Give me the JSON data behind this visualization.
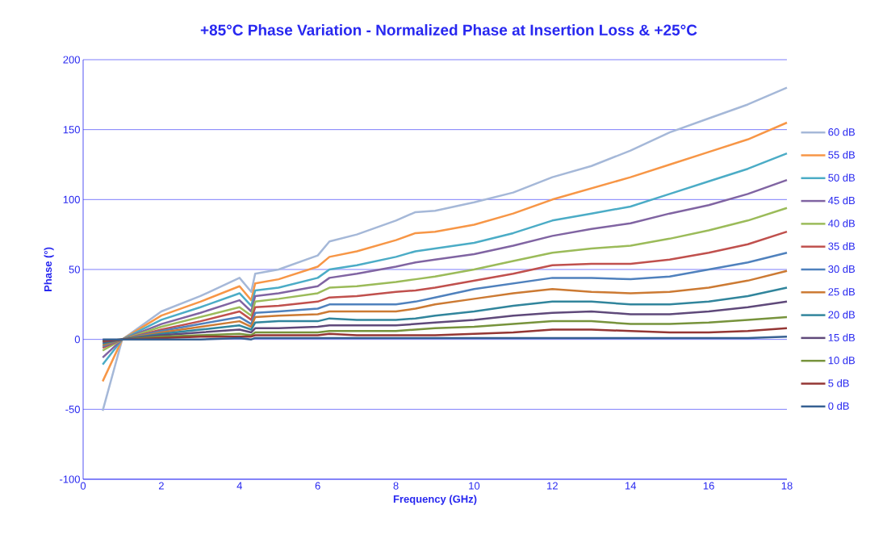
{
  "chart_data": {
    "type": "line",
    "title": "+85°C Phase Variation - Normalized Phase at Insertion Loss & +25°C",
    "xlabel": "Frequency (GHz)",
    "ylabel": "Phase (°)",
    "x": [
      0.5,
      1,
      2,
      3,
      4,
      4.3,
      4.4,
      5,
      6,
      6.3,
      7,
      8,
      8.5,
      9,
      10,
      11,
      12,
      13,
      14,
      15,
      16,
      17,
      18
    ],
    "xlim": [
      0,
      18
    ],
    "xticks": [
      0,
      2,
      4,
      6,
      8,
      10,
      12,
      14,
      16,
      18
    ],
    "ylim": [
      -100,
      200
    ],
    "yticks": [
      -100,
      -50,
      0,
      50,
      100,
      150,
      200
    ],
    "grid": "y",
    "legend": "right",
    "marker": "none",
    "line_style": "solid",
    "series": [
      {
        "name": "60 dB",
        "color": "#a5b8d8",
        "values": [
          -51,
          0,
          20,
          31,
          44,
          34,
          47,
          50,
          60,
          70,
          75,
          85,
          91,
          92,
          98,
          105,
          116,
          124,
          135,
          148,
          158,
          168,
          180
        ]
      },
      {
        "name": "55 dB",
        "color": "#f79646",
        "values": [
          -30,
          0,
          17,
          27,
          38,
          28,
          40,
          43,
          52,
          59,
          63,
          71,
          76,
          77,
          82,
          90,
          100,
          108,
          116,
          125,
          134,
          143,
          155
        ]
      },
      {
        "name": "50 dB",
        "color": "#4bacc6",
        "values": [
          -18,
          0,
          14,
          23,
          33,
          24,
          35,
          37,
          44,
          50,
          53,
          59,
          63,
          65,
          69,
          76,
          85,
          90,
          95,
          104,
          113,
          122,
          133
        ]
      },
      {
        "name": "45 dB",
        "color": "#8064a2",
        "values": [
          -13,
          0,
          11,
          19,
          28,
          20,
          31,
          33,
          38,
          44,
          47,
          52,
          55,
          57,
          61,
          67,
          74,
          79,
          83,
          90,
          96,
          104,
          114
        ]
      },
      {
        "name": "40 dB",
        "color": "#9bbb59",
        "values": [
          -8,
          0,
          9,
          16,
          23,
          17,
          27,
          29,
          33,
          37,
          38,
          41,
          43,
          45,
          50,
          56,
          62,
          65,
          67,
          72,
          78,
          85,
          94
        ]
      },
      {
        "name": "35 dB",
        "color": "#c0504d",
        "values": [
          -6,
          0,
          7,
          13,
          20,
          14,
          23,
          24,
          27,
          30,
          31,
          34,
          35,
          37,
          42,
          47,
          53,
          54,
          54,
          57,
          62,
          68,
          77
        ]
      },
      {
        "name": "30 dB",
        "color": "#4f81bd",
        "values": [
          -5,
          0,
          6,
          11,
          16,
          11,
          19,
          20,
          22,
          25,
          25,
          25,
          27,
          30,
          36,
          40,
          44,
          44,
          43,
          45,
          50,
          55,
          62
        ]
      },
      {
        "name": "25 dB",
        "color": "#cc7a33",
        "values": [
          -4,
          0,
          5,
          9,
          13,
          9,
          16,
          17,
          18,
          20,
          20,
          20,
          22,
          25,
          29,
          33,
          36,
          34,
          33,
          34,
          37,
          42,
          49
        ]
      },
      {
        "name": "20 dB",
        "color": "#31859c",
        "values": [
          -3,
          0,
          4,
          7,
          10,
          7,
          12,
          13,
          13,
          15,
          14,
          14,
          15,
          17,
          20,
          24,
          27,
          27,
          25,
          25,
          27,
          31,
          37
        ]
      },
      {
        "name": "15 dB",
        "color": "#5f497a",
        "values": [
          -2,
          0,
          3,
          5,
          7,
          5,
          8,
          8,
          9,
          10,
          10,
          10,
          11,
          12,
          14,
          17,
          19,
          20,
          18,
          18,
          20,
          23,
          27
        ]
      },
      {
        "name": "10 dB",
        "color": "#77933c",
        "values": [
          -1,
          0,
          2,
          3,
          4,
          3,
          5,
          5,
          5,
          6,
          6,
          6,
          7,
          8,
          9,
          11,
          13,
          13,
          11,
          11,
          12,
          14,
          16
        ]
      },
      {
        "name": "5 dB",
        "color": "#943634",
        "values": [
          -1,
          0,
          1,
          2,
          2,
          2,
          3,
          3,
          3,
          4,
          3,
          3,
          3,
          3,
          4,
          5,
          7,
          7,
          6,
          5,
          5,
          6,
          8
        ]
      },
      {
        "name": "0 dB",
        "color": "#366092",
        "values": [
          0,
          0,
          0,
          0,
          1,
          0,
          1,
          1,
          1,
          1,
          1,
          1,
          1,
          1,
          1,
          1,
          1,
          1,
          1,
          1,
          1,
          1,
          2
        ]
      }
    ]
  }
}
